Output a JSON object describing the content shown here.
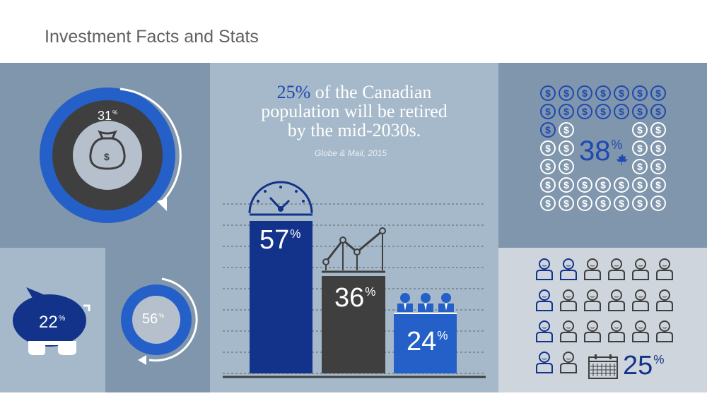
{
  "title": "Investment Facts and Stats",
  "stats": {
    "moneybag": {
      "value": "31",
      "unit": "%"
    },
    "piggy": {
      "value": "22",
      "unit": "%"
    },
    "circle": {
      "value": "56",
      "unit": "%"
    },
    "canada": {
      "value": "38",
      "unit": "%"
    },
    "people": {
      "value": "25",
      "unit": "%"
    }
  },
  "headline": {
    "highlight": "25%",
    "rest1": " of the Canadian",
    "line2": "population will be retired",
    "line3": "by the mid-2030s."
  },
  "source": "Globe & Mail, 2015",
  "bars": [
    {
      "value": "57",
      "unit": "%",
      "color": "#13328a"
    },
    {
      "value": "36",
      "unit": "%",
      "color": "#3f3f3f"
    },
    {
      "value": "24",
      "unit": "%",
      "color": "#2460c8"
    }
  ],
  "colors": {
    "blue_dark": "#13328a",
    "blue": "#2460c8",
    "gray_dark": "#3f3f3f",
    "panel_a": "#8096ad",
    "panel_b": "#a5b9ca",
    "panel_c": "#ced5dd"
  }
}
